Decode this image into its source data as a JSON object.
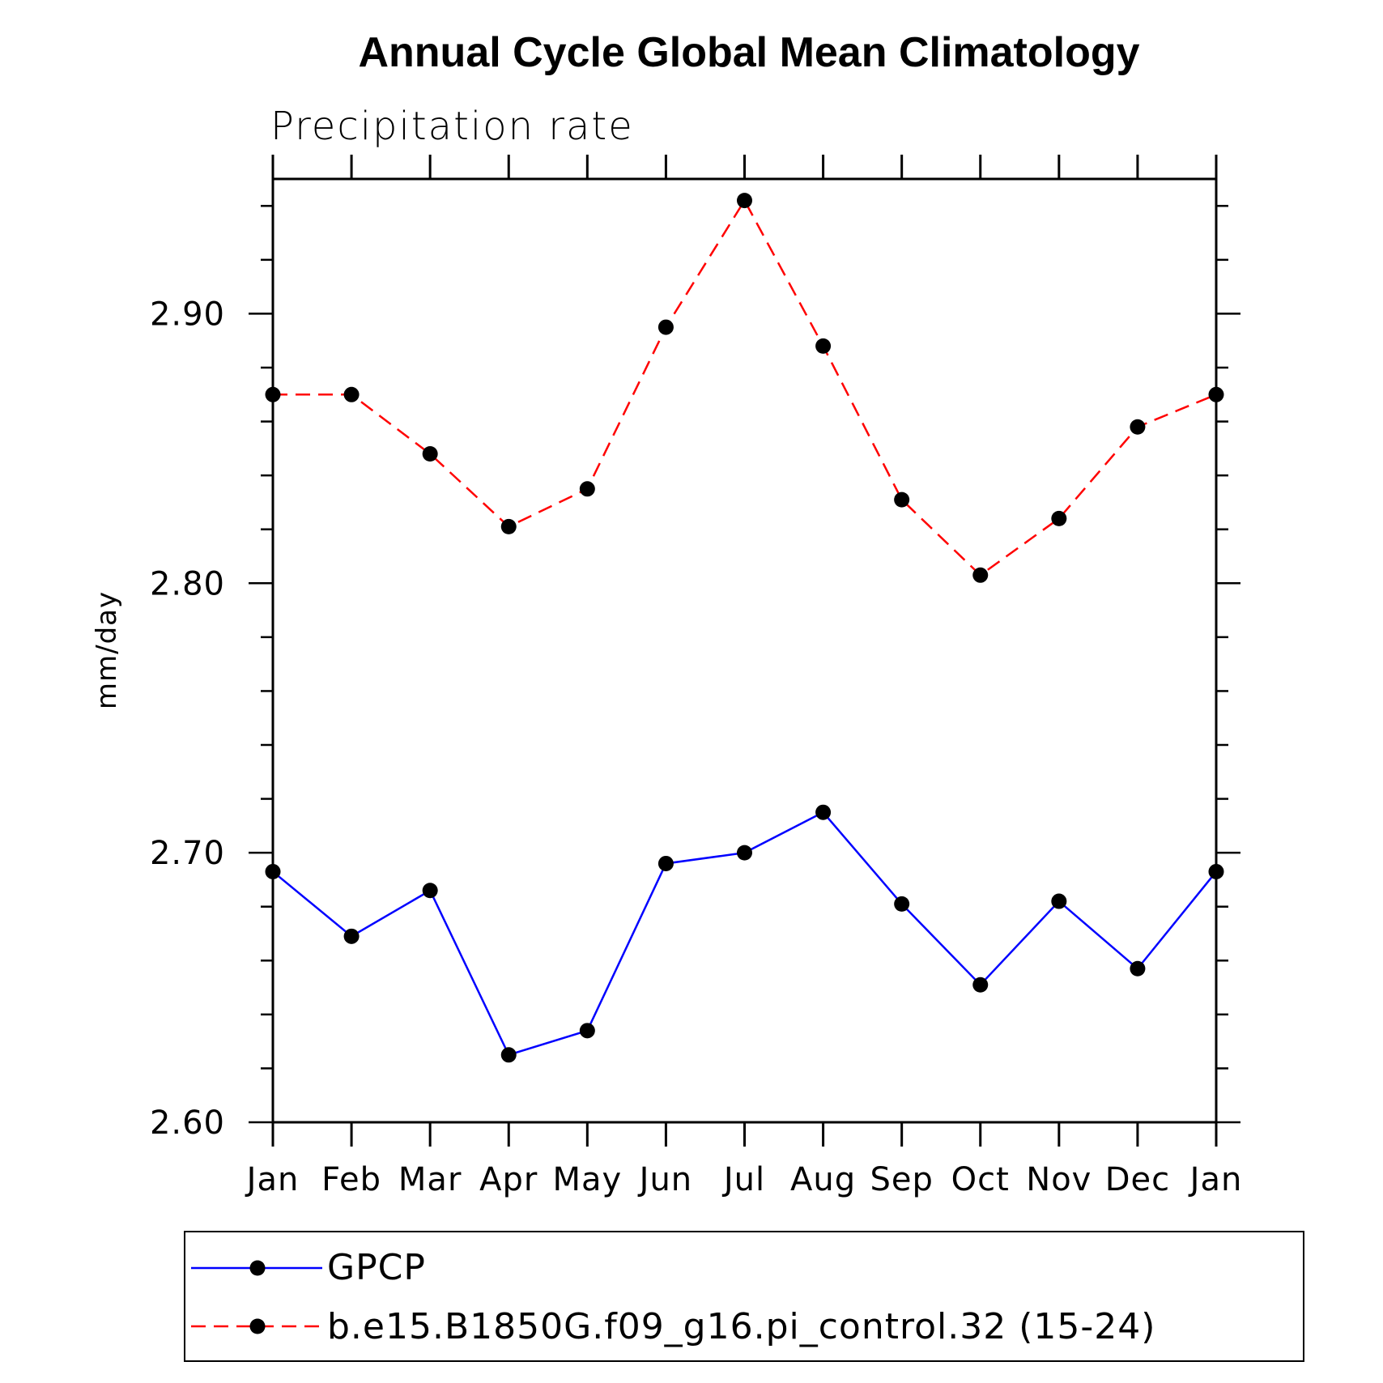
{
  "chart_data": {
    "type": "line",
    "title": "Annual Cycle Global Mean Climatology",
    "subtitle": "Precipitation rate",
    "xlabel": "",
    "ylabel": "mm/day",
    "categories": [
      "Jan",
      "Feb",
      "Mar",
      "Apr",
      "May",
      "Jun",
      "Jul",
      "Aug",
      "Sep",
      "Oct",
      "Nov",
      "Dec",
      "Jan"
    ],
    "ylim": [
      2.6,
      2.95
    ],
    "yticks": [
      "2.60",
      "2.70",
      "2.80",
      "2.90"
    ],
    "grid": false,
    "legend_position": "bottom",
    "series": [
      {
        "name": "GPCP",
        "color": "#0000ff",
        "line_style": "solid",
        "marker": "filled-circle",
        "values": [
          2.693,
          2.669,
          2.686,
          2.625,
          2.634,
          2.696,
          2.7,
          2.715,
          2.681,
          2.651,
          2.682,
          2.657,
          2.693
        ]
      },
      {
        "name": "b.e15.B1850G.f09_g16.pi_control.32 (15-24)",
        "color": "#ff0000",
        "line_style": "dashed",
        "marker": "filled-circle",
        "values": [
          2.87,
          2.87,
          2.848,
          2.821,
          2.835,
          2.895,
          2.942,
          2.888,
          2.831,
          2.803,
          2.824,
          2.858,
          2.87
        ]
      }
    ]
  }
}
